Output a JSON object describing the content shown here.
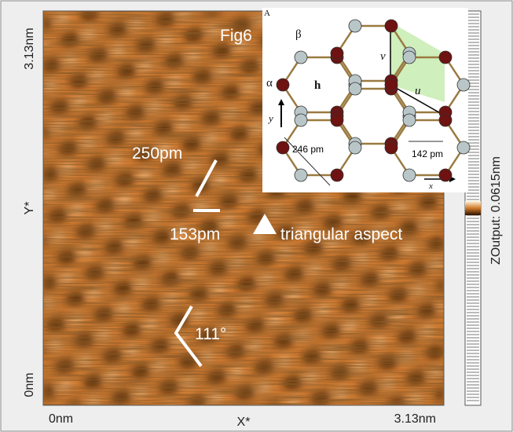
{
  "axes": {
    "y_max_label": "3.13nm",
    "y_min_label": "0nm",
    "y_title": "Y*",
    "x_min_label": "0nm",
    "x_title": "X*",
    "x_max_label": "3.13nm"
  },
  "colorbar": {
    "label": "ZOutput: 0.0615nm"
  },
  "annotations": {
    "figure": "Fig6",
    "distance_1": "250pm",
    "distance_2": "153pm",
    "aspect": "triangular aspect",
    "angle": "111°"
  },
  "inset": {
    "panel": "A",
    "beta": "β",
    "alpha": "α",
    "hexagon": "h",
    "vector_v": "v",
    "vector_u": "u",
    "axis_y": "y",
    "axis_x": "x",
    "spacing_1": "246 pm",
    "spacing_2": "142 pm"
  }
}
